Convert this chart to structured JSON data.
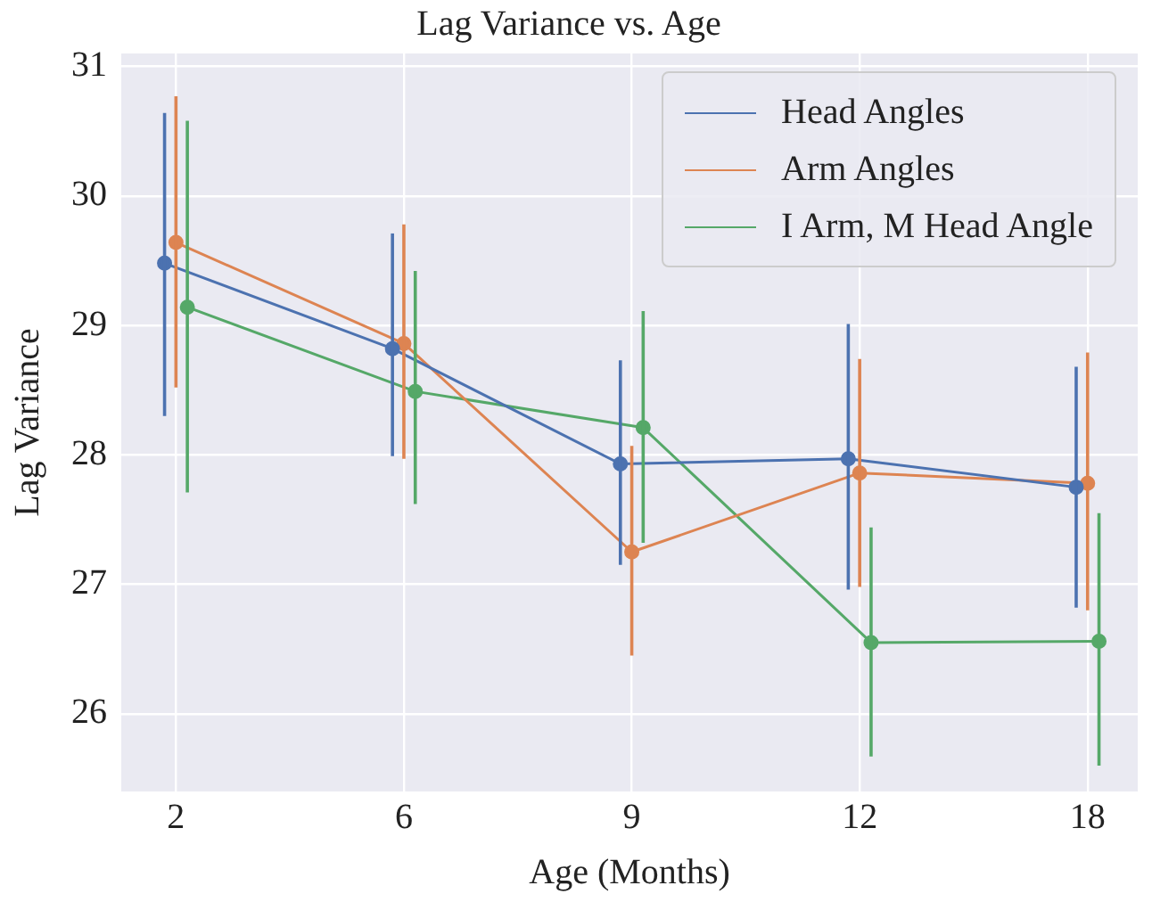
{
  "chart_data": {
    "type": "line",
    "title": "Lag Variance vs. Age",
    "xlabel": "Age (Months)",
    "ylabel": "Lag Variance",
    "categories": [
      "2",
      "6",
      "9",
      "12",
      "18"
    ],
    "ylim": [
      25.4,
      31.1
    ],
    "yticks": [
      26,
      27,
      28,
      29,
      30,
      31
    ],
    "grid": true,
    "legend": "top right",
    "marker": "circle",
    "line_style": "solid",
    "series": [
      {
        "name": "Head Angles",
        "color": "#4c72b0",
        "values": [
          29.48,
          28.82,
          27.93,
          27.97,
          27.75
        ],
        "errors": [
          [
            28.3,
            30.64
          ],
          [
            27.99,
            29.71
          ],
          [
            27.15,
            28.73
          ],
          [
            26.96,
            29.01
          ],
          [
            26.82,
            28.68
          ]
        ]
      },
      {
        "name": "Arm Angles",
        "color": "#dd8452",
        "values": [
          29.64,
          28.86,
          27.25,
          27.86,
          27.78
        ],
        "errors": [
          [
            28.52,
            30.77
          ],
          [
            27.97,
            29.78
          ],
          [
            26.45,
            28.07
          ],
          [
            26.98,
            28.74
          ],
          [
            26.8,
            28.79
          ]
        ]
      },
      {
        "name": "I Arm, M Head Angle",
        "color": "#55a868",
        "values": [
          29.14,
          28.49,
          28.21,
          26.55,
          26.56
        ],
        "errors": [
          [
            27.71,
            30.58
          ],
          [
            27.62,
            29.42
          ],
          [
            27.32,
            29.11
          ],
          [
            25.67,
            27.44
          ],
          [
            25.6,
            27.55
          ]
        ]
      }
    ]
  }
}
